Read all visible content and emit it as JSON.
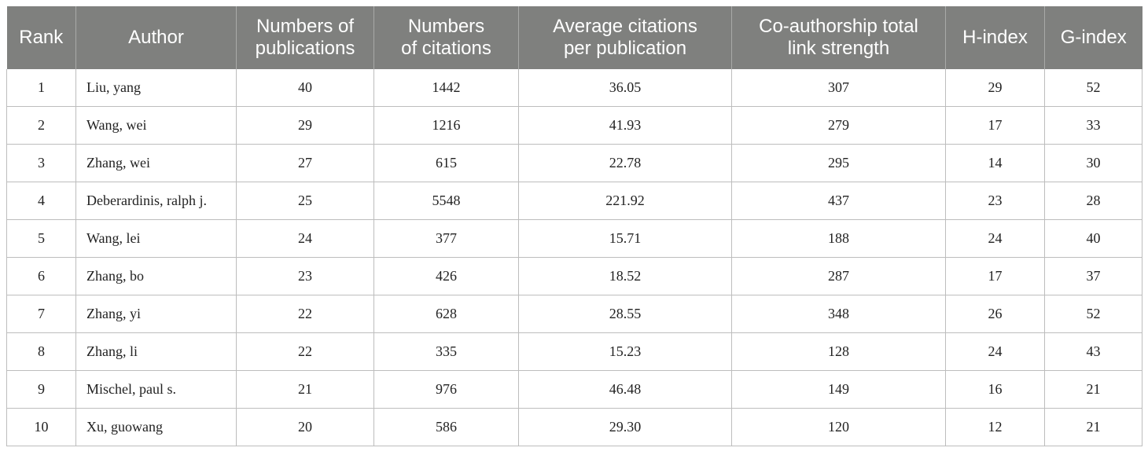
{
  "table": {
    "columns": [
      {
        "line1": "Rank",
        "line2": ""
      },
      {
        "line1": "Author",
        "line2": ""
      },
      {
        "line1": "Numbers of",
        "line2": "publications"
      },
      {
        "line1": "Numbers",
        "line2": "of citations"
      },
      {
        "line1": "Average citations",
        "line2": "per publication"
      },
      {
        "line1": "Co-authorship total",
        "line2": "link strength"
      },
      {
        "line1": "H-index",
        "line2": ""
      },
      {
        "line1": "G-index",
        "line2": ""
      }
    ],
    "rows": [
      [
        "1",
        "Liu, yang",
        "40",
        "1442",
        "36.05",
        "307",
        "29",
        "52"
      ],
      [
        "2",
        "Wang, wei",
        "29",
        "1216",
        "41.93",
        "279",
        "17",
        "33"
      ],
      [
        "3",
        "Zhang, wei",
        "27",
        "615",
        "22.78",
        "295",
        "14",
        "30"
      ],
      [
        "4",
        "Deberardinis, ralph j.",
        "25",
        "5548",
        "221.92",
        "437",
        "23",
        "28"
      ],
      [
        "5",
        "Wang, lei",
        "24",
        "377",
        "15.71",
        "188",
        "24",
        "40"
      ],
      [
        "6",
        "Zhang, bo",
        "23",
        "426",
        "18.52",
        "287",
        "17",
        "37"
      ],
      [
        "7",
        "Zhang, yi",
        "22",
        "628",
        "28.55",
        "348",
        "26",
        "52"
      ],
      [
        "8",
        "Zhang, li",
        "22",
        "335",
        "15.23",
        "128",
        "24",
        "43"
      ],
      [
        "9",
        "Mischel, paul s.",
        "21",
        "976",
        "46.48",
        "149",
        "16",
        "21"
      ],
      [
        "10",
        "Xu, guowang",
        "20",
        "586",
        "29.30",
        "120",
        "12",
        "21"
      ]
    ]
  }
}
